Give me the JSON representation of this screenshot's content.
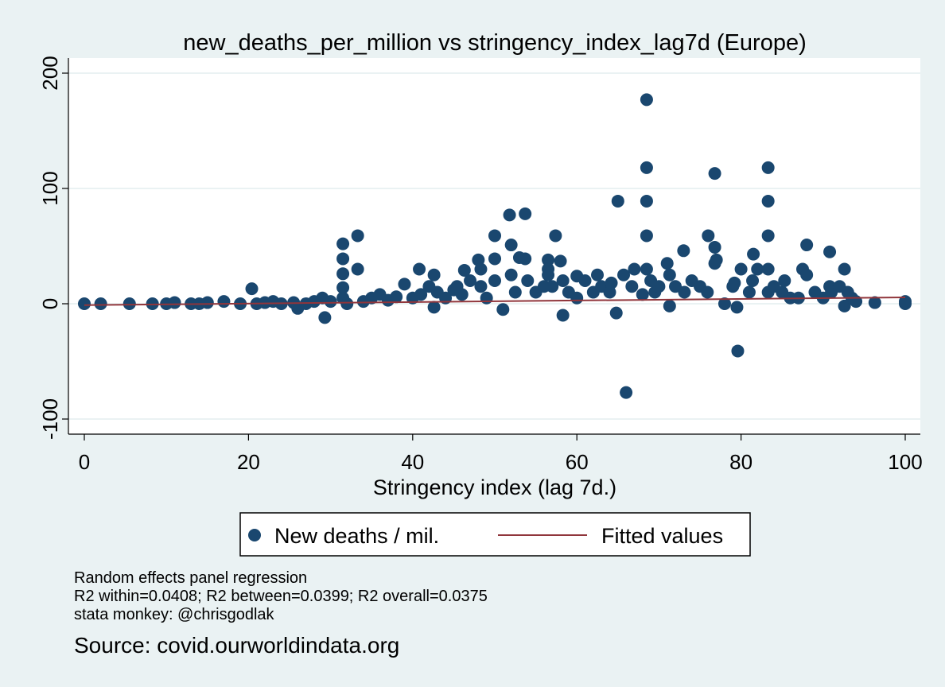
{
  "chart_data": {
    "type": "scatter",
    "title": "new_deaths_per_million vs stringency_index_lag7d (Europe)",
    "xlabel": "Stringency index (lag 7d.)",
    "ylabel": "",
    "xlim": [
      0,
      100
    ],
    "ylim": [
      -100,
      200
    ],
    "xticks": [
      0,
      20,
      40,
      60,
      80,
      100
    ],
    "yticks": [
      -100,
      0,
      100,
      200
    ],
    "grid": "horizontal",
    "legend_position": "bottom",
    "colors": {
      "points": "#1a476f",
      "fit": "#90353b",
      "plot_bg": "#ffffff",
      "page_bg": "#eaf2f3"
    },
    "series": [
      {
        "name": "New deaths / mil.",
        "type": "scatter",
        "x": [
          0,
          2,
          5.5,
          8.3,
          10,
          11,
          13,
          14,
          15,
          17,
          19,
          20.4,
          21,
          22,
          23,
          24,
          25.5,
          26,
          27,
          28,
          29,
          29.3,
          30,
          31.5,
          31.5,
          31.5,
          31.5,
          31.5,
          32,
          33.3,
          33.3,
          34,
          35,
          36,
          37,
          38,
          39,
          40,
          40.8,
          41,
          42,
          42.6,
          42.6,
          43,
          44,
          45,
          45.4,
          46,
          46.3,
          47,
          48,
          48.3,
          48.3,
          49,
          50,
          50,
          50,
          51,
          51.8,
          52,
          52,
          52.5,
          53,
          53.7,
          53.7,
          54,
          55,
          56,
          56.5,
          56.5,
          56.5,
          57,
          57.4,
          58,
          58.3,
          58.3,
          59,
          60,
          60,
          61,
          62,
          62.5,
          63,
          64,
          64.2,
          64.8,
          65,
          65.7,
          66,
          66.7,
          67,
          68,
          68.5,
          68.5,
          68.5,
          68.5,
          68.5,
          69,
          69.5,
          70,
          71,
          71.3,
          71.3,
          72,
          73,
          73.1,
          74,
          75,
          75.9,
          76,
          76.8,
          76.8,
          76.8,
          77,
          78,
          79,
          79.2,
          79.5,
          79.6,
          80,
          81,
          81.4,
          81.5,
          82,
          83.3,
          83.3,
          83.3,
          83.3,
          83.3,
          84,
          85,
          85.3,
          86,
          87,
          87.5,
          88,
          88,
          89,
          90,
          90.8,
          90.8,
          91,
          92,
          92.6,
          92.6,
          93,
          93.5,
          94,
          96.3,
          100,
          100
        ],
        "y": [
          0,
          0,
          0,
          0,
          0,
          1,
          0,
          0,
          1,
          2,
          0,
          13,
          0,
          1,
          2,
          0,
          1,
          -4,
          0,
          2,
          5,
          -12,
          2,
          52,
          39,
          26,
          14,
          5,
          0,
          59,
          30,
          2,
          5,
          8,
          3,
          6,
          17,
          5,
          30,
          8,
          15,
          25,
          -3,
          10,
          5,
          12,
          15,
          8,
          29,
          20,
          38,
          30,
          15,
          5,
          59,
          39,
          20,
          -5,
          77,
          51,
          25,
          10,
          40,
          78,
          39,
          20,
          10,
          15,
          38,
          30,
          25,
          15,
          59,
          37,
          20,
          -10,
          10,
          24,
          5,
          20,
          10,
          25,
          15,
          10,
          18,
          -8,
          89,
          25,
          -77,
          15,
          30,
          8,
          177,
          118,
          89,
          59,
          30,
          20,
          10,
          15,
          35,
          25,
          -2,
          15,
          46,
          10,
          20,
          15,
          10,
          59,
          35,
          113,
          49,
          38,
          0,
          15,
          18,
          -3,
          -41,
          30,
          10,
          20,
          43,
          30,
          10,
          118,
          89,
          59,
          30,
          15,
          10,
          20,
          5,
          5,
          30,
          25,
          51,
          10,
          5,
          45,
          15,
          10,
          15,
          -2,
          30,
          10,
          5,
          2,
          1,
          0,
          2
        ],
        "marker": "circle"
      },
      {
        "name": "Fitted values",
        "type": "line",
        "x": [
          0,
          100
        ],
        "y": [
          -1.2,
          5.5
        ]
      }
    ]
  },
  "notes": [
    "Random effects panel regression",
    "R2 within=0.0408; R2 between=0.0399; R2 overall=0.0375",
    "stata monkey: @chrisgodlak"
  ],
  "source": "Source: covid.ourworldindata.org"
}
